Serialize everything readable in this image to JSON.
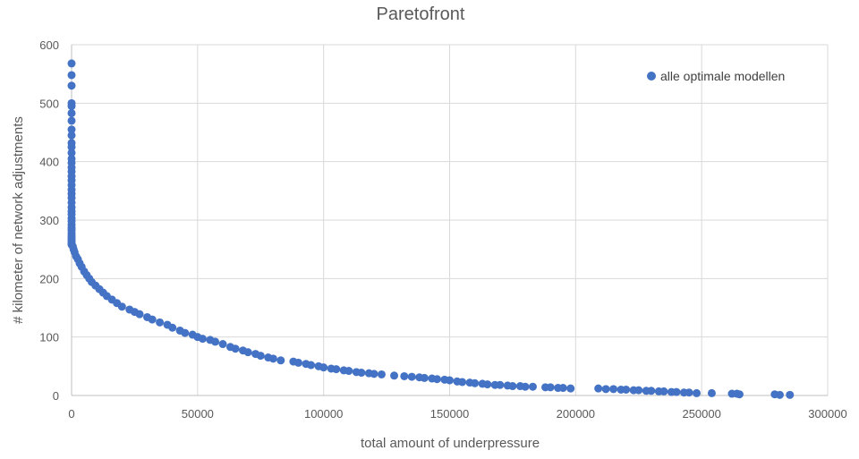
{
  "chart_data": {
    "type": "scatter",
    "title": "Paretofront",
    "xlabel": "total amount of underpressure",
    "ylabel": "# kilometer of network adjustments",
    "xlim": [
      0,
      300000
    ],
    "ylim": [
      0,
      600
    ],
    "xticks": [
      "0",
      "50000",
      "100000",
      "150000",
      "200000",
      "250000",
      "300000"
    ],
    "yticks": [
      "0",
      "100",
      "200",
      "300",
      "400",
      "500",
      "600"
    ],
    "grid": true,
    "legend_position": "top-right",
    "series": [
      {
        "name": "alle optimale modellen",
        "color": "#4472C4",
        "x": [
          0,
          0,
          0,
          0,
          0,
          0,
          0,
          0,
          0,
          0,
          0,
          0,
          0,
          0,
          0,
          0,
          0,
          0,
          0,
          0,
          0,
          0,
          0,
          0,
          0,
          0,
          0,
          0,
          0,
          0,
          0,
          0,
          0,
          0,
          0,
          0,
          0,
          0,
          500,
          800,
          1200,
          1800,
          2500,
          3200,
          4000,
          5000,
          6000,
          7000,
          8000,
          9500,
          11000,
          12500,
          14000,
          16000,
          18000,
          20000,
          23000,
          25000,
          27000,
          30000,
          32000,
          35000,
          38000,
          40000,
          43000,
          45000,
          48000,
          50000,
          52000,
          55000,
          57000,
          60000,
          63000,
          65000,
          68000,
          70000,
          73000,
          75000,
          78000,
          80000,
          83000,
          88000,
          90000,
          93000,
          95000,
          98000,
          100000,
          103000,
          105000,
          108000,
          110000,
          113000,
          115000,
          118000,
          120000,
          123000,
          128000,
          132000,
          135000,
          138000,
          140000,
          143000,
          145000,
          148000,
          150000,
          153000,
          155000,
          158000,
          160000,
          163000,
          165000,
          168000,
          170000,
          173000,
          175000,
          178000,
          180000,
          183000,
          188000,
          190000,
          193000,
          195000,
          198000,
          209000,
          212000,
          215000,
          218000,
          220000,
          223000,
          225000,
          228000,
          230000,
          233000,
          235000,
          238000,
          240000,
          243000,
          245000,
          248000,
          254000,
          262000,
          264000,
          265000,
          279000,
          281000,
          285000
        ],
        "y": [
          568,
          548,
          530,
          500,
          495,
          483,
          470,
          455,
          445,
          432,
          425,
          415,
          405,
          398,
          390,
          383,
          375,
          368,
          360,
          352,
          345,
          338,
          330,
          322,
          315,
          310,
          303,
          298,
          292,
          287,
          283,
          278,
          274,
          270,
          266,
          263,
          260,
          258,
          255,
          250,
          245,
          238,
          233,
          226,
          220,
          212,
          206,
          200,
          194,
          188,
          182,
          176,
          170,
          164,
          158,
          152,
          147,
          143,
          139,
          134,
          130,
          125,
          121,
          116,
          111,
          107,
          104,
          100,
          97,
          95,
          92,
          88,
          83,
          80,
          77,
          74,
          71,
          68,
          65,
          63,
          60,
          58,
          56,
          54,
          52,
          50,
          48,
          46,
          45,
          43,
          42,
          40,
          39,
          38,
          37,
          36,
          34,
          33,
          32,
          31,
          30,
          29,
          28,
          27,
          26,
          24,
          23,
          22,
          21,
          20,
          19,
          18,
          18,
          17,
          16,
          16,
          15,
          15,
          14,
          14,
          13,
          13,
          12,
          12,
          11,
          11,
          10,
          10,
          9,
          9,
          8,
          8,
          7,
          7,
          6,
          6,
          5,
          5,
          4,
          4,
          3,
          3,
          2,
          2,
          1,
          1
        ]
      }
    ]
  }
}
